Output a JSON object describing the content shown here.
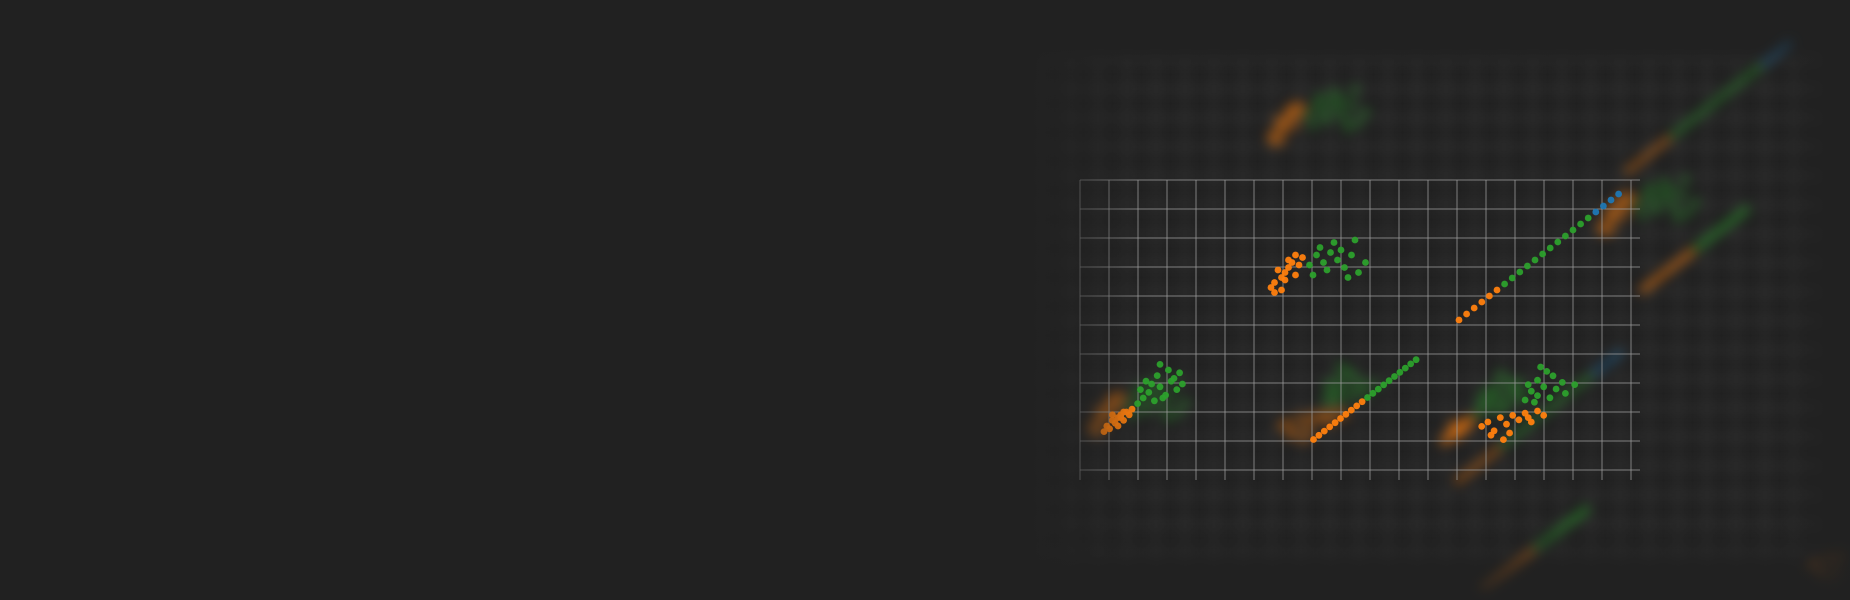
{
  "page": {
    "background": "#212121"
  },
  "chart_data": {
    "type": "scatter",
    "layout": "scatter-matrix",
    "grid": true,
    "colors": {
      "grid": "#9e9e9e",
      "series_a": "#1f77b4",
      "series_b": "#ff7f0e",
      "series_c": "#2ca02c"
    },
    "groups": [
      "a",
      "b",
      "c"
    ],
    "panels": [
      {
        "name": "panel-2-1",
        "points": [
          [
            1.1,
            1.0,
            "b"
          ],
          [
            1.3,
            1.2,
            "b"
          ],
          [
            1.4,
            1.1,
            "b"
          ],
          [
            1.5,
            1.3,
            "b"
          ],
          [
            1.6,
            1.4,
            "b"
          ],
          [
            1.7,
            1.2,
            "b"
          ],
          [
            1.8,
            1.5,
            "b"
          ],
          [
            1.2,
            0.9,
            "b"
          ],
          [
            1.9,
            1.4,
            "b"
          ],
          [
            2.0,
            1.6,
            "b"
          ],
          [
            1.5,
            1.0,
            "b"
          ],
          [
            1.0,
            0.8,
            "b"
          ],
          [
            1.6,
            1.3,
            "b"
          ],
          [
            1.7,
            1.5,
            "b"
          ],
          [
            1.3,
            1.4,
            "b"
          ],
          [
            2.4,
            2.0,
            "c"
          ],
          [
            2.6,
            2.2,
            "c"
          ],
          [
            2.8,
            1.9,
            "c"
          ],
          [
            3.0,
            2.4,
            "c"
          ],
          [
            3.2,
            2.1,
            "c"
          ],
          [
            3.4,
            2.6,
            "c"
          ],
          [
            3.6,
            2.3,
            "c"
          ],
          [
            2.5,
            2.6,
            "c"
          ],
          [
            2.9,
            2.8,
            "c"
          ],
          [
            3.1,
            2.0,
            "c"
          ],
          [
            3.3,
            3.0,
            "c"
          ],
          [
            3.5,
            2.7,
            "c"
          ],
          [
            2.7,
            2.5,
            "c"
          ],
          [
            3.7,
            2.9,
            "c"
          ],
          [
            2.2,
            1.8,
            "c"
          ],
          [
            2.3,
            2.3,
            "c"
          ],
          [
            3.8,
            2.5,
            "c"
          ],
          [
            3.0,
            3.2,
            "c"
          ]
        ]
      },
      {
        "name": "panel-2-2",
        "points": [
          [
            1.2,
            2.8,
            "b"
          ],
          [
            1.4,
            3.0,
            "b"
          ],
          [
            1.5,
            3.2,
            "b"
          ],
          [
            1.6,
            3.4,
            "b"
          ],
          [
            1.7,
            3.6,
            "b"
          ],
          [
            1.8,
            3.1,
            "b"
          ],
          [
            1.9,
            3.5,
            "b"
          ],
          [
            1.3,
            3.3,
            "b"
          ],
          [
            1.1,
            2.6,
            "b"
          ],
          [
            2.0,
            3.8,
            "b"
          ],
          [
            1.6,
            3.7,
            "b"
          ],
          [
            1.5,
            2.9,
            "b"
          ],
          [
            1.2,
            2.4,
            "b"
          ],
          [
            1.8,
            3.9,
            "b"
          ],
          [
            1.4,
            2.5,
            "b"
          ],
          [
            2.2,
            3.5,
            "c"
          ],
          [
            2.4,
            3.9,
            "c"
          ],
          [
            2.6,
            3.6,
            "c"
          ],
          [
            2.8,
            4.0,
            "c"
          ],
          [
            3.0,
            3.7,
            "c"
          ],
          [
            3.2,
            3.4,
            "c"
          ],
          [
            3.4,
            3.9,
            "c"
          ],
          [
            2.5,
            4.2,
            "c"
          ],
          [
            2.9,
            4.4,
            "c"
          ],
          [
            3.6,
            3.2,
            "c"
          ],
          [
            2.7,
            3.3,
            "c"
          ],
          [
            3.1,
            4.1,
            "c"
          ],
          [
            3.8,
            3.6,
            "c"
          ],
          [
            3.5,
            4.5,
            "c"
          ],
          [
            2.3,
            3.1,
            "c"
          ],
          [
            3.3,
            3.0,
            "c"
          ]
        ]
      },
      {
        "name": "panel-2-3",
        "points": [
          [
            1.0,
            1.0,
            "b"
          ],
          [
            1.2,
            1.2,
            "b"
          ],
          [
            1.4,
            1.4,
            "b"
          ],
          [
            1.6,
            1.6,
            "b"
          ],
          [
            1.8,
            1.8,
            "b"
          ],
          [
            2.0,
            2.0,
            "b"
          ],
          [
            2.2,
            2.2,
            "c"
          ],
          [
            2.4,
            2.4,
            "c"
          ],
          [
            2.6,
            2.6,
            "c"
          ],
          [
            2.8,
            2.8,
            "c"
          ],
          [
            3.0,
            3.0,
            "c"
          ],
          [
            3.2,
            3.2,
            "c"
          ],
          [
            3.4,
            3.4,
            "c"
          ],
          [
            3.6,
            3.6,
            "c"
          ],
          [
            3.8,
            3.8,
            "c"
          ],
          [
            4.0,
            4.0,
            "c"
          ],
          [
            4.2,
            4.2,
            "c"
          ],
          [
            4.4,
            4.4,
            "c"
          ],
          [
            4.6,
            4.6,
            "a"
          ],
          [
            4.8,
            4.8,
            "a"
          ],
          [
            5.0,
            5.0,
            "a"
          ],
          [
            5.2,
            5.2,
            "a"
          ]
        ]
      },
      {
        "name": "panel-3-2",
        "points": [
          [
            1.0,
            1.0,
            "b"
          ],
          [
            1.2,
            1.2,
            "b"
          ],
          [
            1.4,
            1.4,
            "b"
          ],
          [
            1.6,
            1.6,
            "b"
          ],
          [
            1.8,
            1.8,
            "b"
          ],
          [
            2.0,
            2.0,
            "b"
          ],
          [
            2.2,
            2.2,
            "b"
          ],
          [
            2.4,
            2.4,
            "b"
          ],
          [
            2.6,
            2.6,
            "b"
          ],
          [
            2.8,
            2.8,
            "b"
          ],
          [
            3.0,
            3.0,
            "c"
          ],
          [
            3.2,
            3.2,
            "c"
          ],
          [
            3.4,
            3.4,
            "c"
          ],
          [
            3.6,
            3.6,
            "c"
          ],
          [
            3.8,
            3.8,
            "c"
          ],
          [
            4.0,
            4.0,
            "c"
          ],
          [
            4.2,
            4.2,
            "c"
          ],
          [
            4.4,
            4.4,
            "c"
          ],
          [
            4.6,
            4.6,
            "c"
          ],
          [
            4.8,
            4.8,
            "c"
          ]
        ]
      },
      {
        "name": "panel-3-3",
        "points": [
          [
            1.2,
            1.8,
            "b"
          ],
          [
            1.4,
            2.0,
            "b"
          ],
          [
            1.6,
            1.6,
            "b"
          ],
          [
            1.8,
            2.2,
            "b"
          ],
          [
            2.0,
            1.9,
            "b"
          ],
          [
            2.2,
            2.3,
            "b"
          ],
          [
            2.4,
            2.1,
            "b"
          ],
          [
            2.6,
            2.4,
            "b"
          ],
          [
            2.8,
            2.0,
            "b"
          ],
          [
            3.0,
            2.5,
            "b"
          ],
          [
            1.5,
            1.4,
            "b"
          ],
          [
            2.1,
            1.5,
            "b"
          ],
          [
            2.7,
            2.2,
            "b"
          ],
          [
            3.2,
            2.3,
            "b"
          ],
          [
            1.9,
            1.2,
            "b"
          ],
          [
            2.6,
            3.0,
            "c"
          ],
          [
            2.8,
            3.4,
            "c"
          ],
          [
            3.0,
            3.2,
            "c"
          ],
          [
            3.2,
            3.6,
            "c"
          ],
          [
            3.4,
            3.1,
            "c"
          ],
          [
            3.6,
            3.5,
            "c"
          ],
          [
            3.8,
            3.8,
            "c"
          ],
          [
            3.0,
            3.9,
            "c"
          ],
          [
            2.7,
            3.7,
            "c"
          ],
          [
            3.5,
            4.1,
            "c"
          ],
          [
            3.9,
            3.3,
            "c"
          ],
          [
            2.9,
            2.9,
            "c"
          ],
          [
            3.3,
            4.3,
            "c"
          ],
          [
            4.2,
            3.7,
            "c"
          ],
          [
            3.1,
            4.5,
            "c"
          ]
        ]
      }
    ]
  }
}
